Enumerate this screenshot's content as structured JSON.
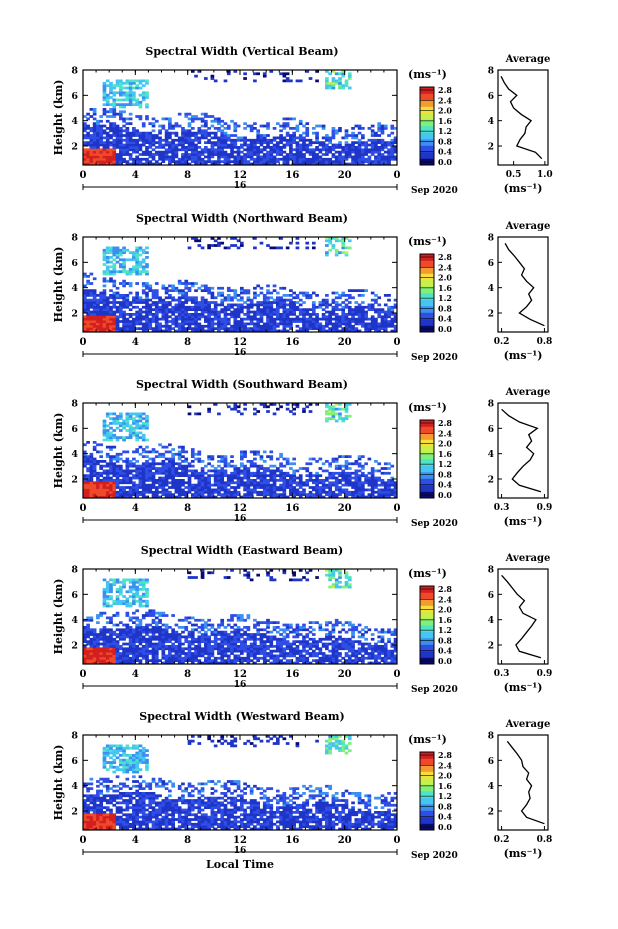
{
  "figure": {
    "date_label": "Sep 2020",
    "day_label": "16",
    "time_label": "Local Time"
  },
  "colors": {
    "scale": [
      "#0a0a6e",
      "#1f35c8",
      "#2f4ee6",
      "#3a8ff0",
      "#45c6f0",
      "#4fe3c8",
      "#7ff07a",
      "#c7f04a",
      "#f5e03a",
      "#f59a30",
      "#ee4a2a",
      "#d21f1f"
    ],
    "background": "#ffffff"
  },
  "chart_data": [
    {
      "type": "heatmap",
      "beam": "vertical",
      "title": "Spectral Width (Vertical Beam)",
      "ylabel": "Height (km)",
      "xlabel": "",
      "x_ticks": [
        "0",
        "4",
        "8",
        "12",
        "16",
        "20",
        "0"
      ],
      "y_ticks": [
        "2",
        "4",
        "6",
        "8"
      ],
      "xlim": [
        0,
        24
      ],
      "ylim": [
        0.5,
        8
      ],
      "colorbar": {
        "label": "(ms⁻¹)",
        "ticks": [
          "0.0",
          "0.4",
          "0.8",
          "1.2",
          "1.6",
          "2.0",
          "2.4",
          "2.8"
        ],
        "range": [
          0,
          3.0
        ]
      },
      "profile": {
        "title": "Average",
        "xlabel": "(ms⁻¹)",
        "x_ticks": [
          "0.5",
          "1.0"
        ],
        "y_ticks": [
          "2",
          "4",
          "6",
          "8"
        ],
        "xlim": [
          0.25,
          1.05
        ],
        "ylim": [
          0.5,
          8
        ],
        "heights": [
          1.0,
          1.5,
          2.0,
          2.5,
          3.0,
          3.5,
          4.0,
          4.5,
          5.0,
          5.5,
          6.0,
          6.5,
          7.0,
          7.5
        ],
        "values": [
          0.95,
          0.85,
          0.55,
          0.6,
          0.68,
          0.7,
          0.78,
          0.62,
          0.5,
          0.45,
          0.55,
          0.42,
          0.35,
          0.3
        ]
      }
    },
    {
      "type": "heatmap",
      "beam": "northward",
      "title": "Spectral Width (Northward Beam)",
      "ylabel": "Height (km)",
      "xlabel": "",
      "x_ticks": [
        "0",
        "4",
        "8",
        "12",
        "16",
        "20",
        "0"
      ],
      "y_ticks": [
        "2",
        "4",
        "6",
        "8"
      ],
      "xlim": [
        0,
        24
      ],
      "ylim": [
        0.5,
        8
      ],
      "colorbar": {
        "label": "(ms⁻¹)",
        "ticks": [
          "0.0",
          "0.4",
          "0.8",
          "1.2",
          "1.6",
          "2.0",
          "2.4",
          "2.8"
        ],
        "range": [
          0,
          3.0
        ]
      },
      "profile": {
        "title": "Average",
        "xlabel": "(ms⁻¹)",
        "x_ticks": [
          "0.2",
          "0.8"
        ],
        "y_ticks": [
          "2",
          "4",
          "6",
          "8"
        ],
        "xlim": [
          0.15,
          0.85
        ],
        "ylim": [
          0.5,
          8
        ],
        "heights": [
          1.0,
          1.5,
          2.0,
          2.5,
          3.0,
          3.5,
          4.0,
          4.5,
          5.0,
          5.5,
          6.0,
          6.5,
          7.0,
          7.5
        ],
        "values": [
          0.8,
          0.6,
          0.45,
          0.55,
          0.62,
          0.58,
          0.65,
          0.55,
          0.48,
          0.52,
          0.45,
          0.38,
          0.3,
          0.25
        ]
      }
    },
    {
      "type": "heatmap",
      "beam": "southward",
      "title": "Spectral Width (Southward Beam)",
      "ylabel": "Height (km)",
      "xlabel": "",
      "x_ticks": [
        "0",
        "4",
        "8",
        "12",
        "16",
        "20",
        "0"
      ],
      "y_ticks": [
        "2",
        "4",
        "6",
        "8"
      ],
      "xlim": [
        0,
        24
      ],
      "ylim": [
        0.5,
        8
      ],
      "colorbar": {
        "label": "(ms⁻¹)",
        "ticks": [
          "0.0",
          "0.4",
          "0.8",
          "1.2",
          "1.6",
          "2.0",
          "2.4",
          "2.8"
        ],
        "range": [
          0,
          3.0
        ]
      },
      "profile": {
        "title": "Average",
        "xlabel": "(ms⁻¹)",
        "x_ticks": [
          "0.3",
          "0.9"
        ],
        "y_ticks": [
          "2",
          "4",
          "6",
          "8"
        ],
        "xlim": [
          0.25,
          0.95
        ],
        "ylim": [
          0.5,
          8
        ],
        "heights": [
          1.0,
          1.5,
          2.0,
          2.5,
          3.0,
          3.5,
          4.0,
          4.5,
          5.0,
          5.5,
          6.0,
          6.5,
          7.0,
          7.5
        ],
        "values": [
          0.85,
          0.55,
          0.45,
          0.52,
          0.6,
          0.7,
          0.75,
          0.65,
          0.72,
          0.68,
          0.8,
          0.55,
          0.4,
          0.3
        ]
      }
    },
    {
      "type": "heatmap",
      "beam": "eastward",
      "title": "Spectral Width (Eastward Beam)",
      "ylabel": "Height (km)",
      "xlabel": "",
      "x_ticks": [
        "0",
        "4",
        "8",
        "12",
        "16",
        "20",
        "0"
      ],
      "y_ticks": [
        "2",
        "4",
        "6",
        "8"
      ],
      "xlim": [
        0,
        24
      ],
      "ylim": [
        0.5,
        8
      ],
      "colorbar": {
        "label": "(ms⁻¹)",
        "ticks": [
          "0.0",
          "0.4",
          "0.8",
          "1.2",
          "1.6",
          "2.0",
          "2.4",
          "2.8"
        ],
        "range": [
          0,
          3.0
        ]
      },
      "profile": {
        "title": "Average",
        "xlabel": "(ms⁻¹)",
        "x_ticks": [
          "0.3",
          "0.9"
        ],
        "y_ticks": [
          "2",
          "4",
          "6",
          "8"
        ],
        "xlim": [
          0.25,
          0.95
        ],
        "ylim": [
          0.5,
          8
        ],
        "heights": [
          1.0,
          1.5,
          2.0,
          2.5,
          3.0,
          3.5,
          4.0,
          4.5,
          5.0,
          5.5,
          6.0,
          6.5,
          7.0,
          7.5
        ],
        "values": [
          0.85,
          0.55,
          0.5,
          0.58,
          0.65,
          0.72,
          0.78,
          0.6,
          0.55,
          0.62,
          0.52,
          0.45,
          0.38,
          0.3
        ]
      }
    },
    {
      "type": "heatmap",
      "beam": "westward",
      "title": "Spectral Width (Westward Beam)",
      "ylabel": "Height (km)",
      "xlabel": "Local Time",
      "x_ticks": [
        "0",
        "4",
        "8",
        "12",
        "16",
        "20",
        "0"
      ],
      "y_ticks": [
        "2",
        "4",
        "6",
        "8"
      ],
      "xlim": [
        0,
        24
      ],
      "ylim": [
        0.5,
        8
      ],
      "colorbar": {
        "label": "(ms⁻¹)",
        "ticks": [
          "0.0",
          "0.4",
          "0.8",
          "1.2",
          "1.6",
          "2.0",
          "2.4",
          "2.8"
        ],
        "range": [
          0,
          3.0
        ]
      },
      "profile": {
        "title": "Average",
        "xlabel": "(ms⁻¹)",
        "x_ticks": [
          "0.2",
          "0.8"
        ],
        "y_ticks": [
          "2",
          "4",
          "6",
          "8"
        ],
        "xlim": [
          0.15,
          0.85
        ],
        "ylim": [
          0.5,
          8
        ],
        "heights": [
          1.0,
          1.5,
          2.0,
          2.5,
          3.0,
          3.5,
          4.0,
          4.5,
          5.0,
          5.5,
          6.0,
          6.5,
          7.0,
          7.5
        ],
        "values": [
          0.8,
          0.55,
          0.48,
          0.55,
          0.6,
          0.58,
          0.62,
          0.55,
          0.58,
          0.5,
          0.48,
          0.42,
          0.35,
          0.28
        ]
      }
    }
  ]
}
